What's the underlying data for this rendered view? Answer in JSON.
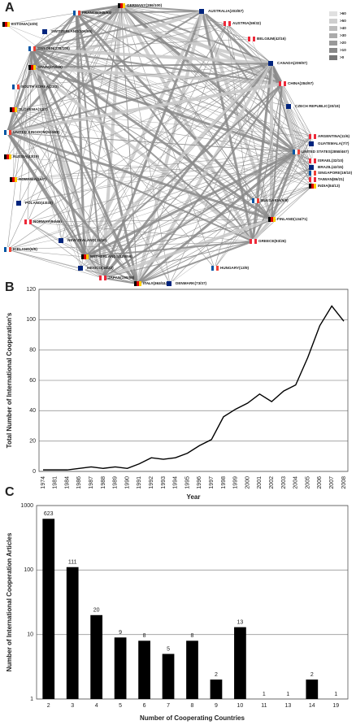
{
  "panels": [
    "A",
    "B",
    "C"
  ],
  "network": {
    "legend": [
      ">60",
      ">50",
      ">40",
      ">30",
      ">20",
      ">10",
      ">0"
    ],
    "nodes": [
      {
        "label": "GERMANY(396/100)"
      },
      {
        "label": "AUSTRALIA(203/87)"
      },
      {
        "label": "FRANCE(345/93)"
      },
      {
        "label": "AUSTRIA(59/32)"
      },
      {
        "label": "ESTONIA(10/9)"
      },
      {
        "label": "SWITZERLAND(106/50)"
      },
      {
        "label": "SWEDEN(278/100)"
      },
      {
        "label": "BELGIUM(42/16)"
      },
      {
        "label": "SPAIN(172/45)"
      },
      {
        "label": "CANADA(209/97)"
      },
      {
        "label": "SOUTH KOREA(23/3)"
      },
      {
        "label": "CHINA(284/97)"
      },
      {
        "label": "SLOVENIA(12/7)"
      },
      {
        "label": "CZECH REPUBLIC(20/19)"
      },
      {
        "label": "UNITED KINGDOM(524/98)"
      },
      {
        "label": "ARGENTINA(11/6)"
      },
      {
        "label": "RUSSIA(43/19)"
      },
      {
        "label": "GUATEMALA(7/7)"
      },
      {
        "label": "UNITED STATES(2858/467)"
      },
      {
        "label": "ISRAEL(32/10)"
      },
      {
        "label": "ROMANIA(16/7)"
      },
      {
        "label": "BRAZIL(42/15)"
      },
      {
        "label": "SINGAPORE(19/10)"
      },
      {
        "label": "TAIWAN(86/21)"
      },
      {
        "label": "INDIA(84/13)"
      },
      {
        "label": "POLAND(43/40)"
      },
      {
        "label": "BULGARIA(9/9)"
      },
      {
        "label": "NORWAY(84/46)"
      },
      {
        "label": "FINLAND(134/71)"
      },
      {
        "label": "NEW ZEALAND(11/10)"
      },
      {
        "label": "ICELAND(6/5)"
      },
      {
        "label": "GREECE(93/26)"
      },
      {
        "label": "NETHERLANDS(128/56)"
      },
      {
        "label": "MEXICO(48/22)"
      },
      {
        "label": "HUNGARY(13/9)"
      },
      {
        "label": "JAPAN(190/58)"
      },
      {
        "label": "ITALY(363/112)"
      },
      {
        "label": "DENMARK(73/37)"
      }
    ]
  },
  "chart_data": [
    {
      "type": "line",
      "xlabel": "Year",
      "ylabel": "Total Number of International Cooperation's",
      "categories": [
        "1974",
        "1981",
        "1984",
        "1986",
        "1987",
        "1988",
        "1989",
        "1990",
        "1991",
        "1992",
        "1993",
        "1994",
        "1995",
        "1996",
        "1997",
        "1998",
        "1999",
        "2000",
        "2001",
        "2002",
        "2003",
        "2004",
        "2005",
        "2006",
        "2007",
        "2008"
      ],
      "values": [
        1,
        1,
        1,
        2,
        3,
        2,
        3,
        2,
        5,
        9,
        8,
        9,
        12,
        17,
        21,
        36,
        41,
        45,
        51,
        46,
        53,
        57,
        75,
        96,
        109,
        99
      ],
      "color": "#000000",
      "ylim": [
        0,
        120
      ],
      "yticks": [
        0,
        20,
        40,
        60,
        80,
        100,
        120
      ],
      "grid": true
    },
    {
      "type": "bar",
      "xlabel": "Number of Cooperating Countries",
      "ylabel": "Number of International Cooperation Articles",
      "categories": [
        "2",
        "3",
        "4",
        "5",
        "6",
        "7",
        "8",
        "9",
        "10",
        "11",
        "13",
        "14",
        "19"
      ],
      "values": [
        623,
        111,
        20,
        9,
        8,
        5,
        8,
        2,
        13,
        1,
        1,
        2,
        1
      ],
      "color": "#000000",
      "log_scale": true,
      "ylim": [
        1,
        1000
      ],
      "yticks": [
        1,
        10,
        100,
        1000
      ],
      "grid": true
    }
  ]
}
